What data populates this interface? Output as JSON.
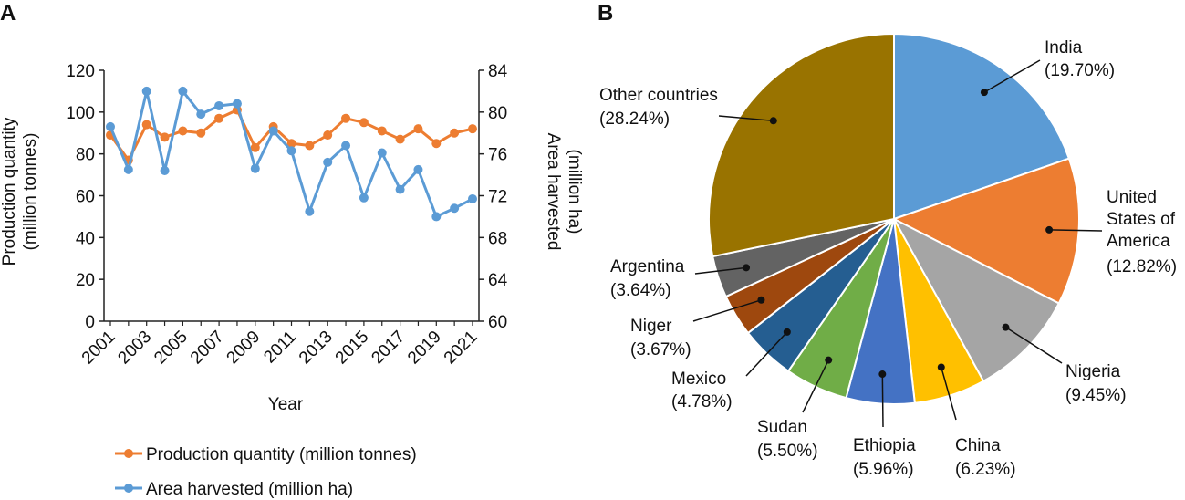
{
  "panel_labels": {
    "a": "A",
    "b": "B"
  },
  "chart_data": [
    {
      "type": "line",
      "title": "",
      "x": [
        2001,
        2002,
        2003,
        2004,
        2005,
        2006,
        2007,
        2008,
        2009,
        2010,
        2011,
        2012,
        2013,
        2014,
        2015,
        2016,
        2017,
        2018,
        2019,
        2020,
        2021
      ],
      "x_tick_labels": [
        "2001",
        "2003",
        "2005",
        "2007",
        "2009",
        "2011",
        "2013",
        "2015",
        "2017",
        "2019",
        "2021"
      ],
      "xlabel": "Year",
      "ylabel_line1": "Production quantity",
      "ylabel_line2": "(million tonnes)",
      "y2label_line1": "Area harvested",
      "y2label_line2": "(million ha)",
      "ylim": [
        0,
        120
      ],
      "y_ticks": [
        0,
        20,
        40,
        60,
        80,
        100,
        120
      ],
      "y2lim": [
        60,
        84
      ],
      "y2_ticks": [
        60,
        64,
        68,
        72,
        76,
        80,
        84
      ],
      "grid": false,
      "legend_position": "bottom",
      "series": [
        {
          "name": "Production quantity (million tonnes)",
          "axis": "left",
          "color": "#ED7D31",
          "values": [
            89,
            77,
            94,
            88,
            91,
            90,
            97,
            101,
            83,
            93,
            85,
            84,
            89,
            97,
            95,
            91,
            87,
            92,
            85,
            90,
            92
          ]
        },
        {
          "name": "Area harvested (million ha)",
          "axis": "right",
          "color": "#5B9BD5",
          "values": [
            78.6,
            74.5,
            82.0,
            74.4,
            82.0,
            79.8,
            80.6,
            80.8,
            74.6,
            78.2,
            76.3,
            70.5,
            75.2,
            76.8,
            71.8,
            76.1,
            72.6,
            74.5,
            70.0,
            70.8,
            71.7
          ]
        }
      ]
    },
    {
      "type": "pie",
      "title": "",
      "slices": [
        {
          "label": "India",
          "value": 19.7,
          "pct_text": "(19.70%)",
          "color": "#5B9BD5"
        },
        {
          "label": "United States of America",
          "value": 12.82,
          "pct_text": "(12.82%)",
          "color": "#ED7D31"
        },
        {
          "label": "Nigeria",
          "value": 9.45,
          "pct_text": "(9.45%)",
          "color": "#A5A5A5"
        },
        {
          "label": "China",
          "value": 6.23,
          "pct_text": "(6.23%)",
          "color": "#FFC000"
        },
        {
          "label": "Ethiopia",
          "value": 5.96,
          "pct_text": "(5.96%)",
          "color": "#4472C4"
        },
        {
          "label": "Sudan",
          "value": 5.5,
          "pct_text": "(5.50%)",
          "color": "#70AD47"
        },
        {
          "label": "Mexico",
          "value": 4.78,
          "pct_text": "(4.78%)",
          "color": "#255E91"
        },
        {
          "label": "Niger",
          "value": 3.67,
          "pct_text": "(3.67%)",
          "color": "#9E480E"
        },
        {
          "label": "Argentina",
          "value": 3.64,
          "pct_text": "(3.64%)",
          "color": "#636363"
        },
        {
          "label": "Other countries",
          "value": 28.24,
          "pct_text": "(28.24%)",
          "color": "#997300"
        }
      ]
    }
  ]
}
